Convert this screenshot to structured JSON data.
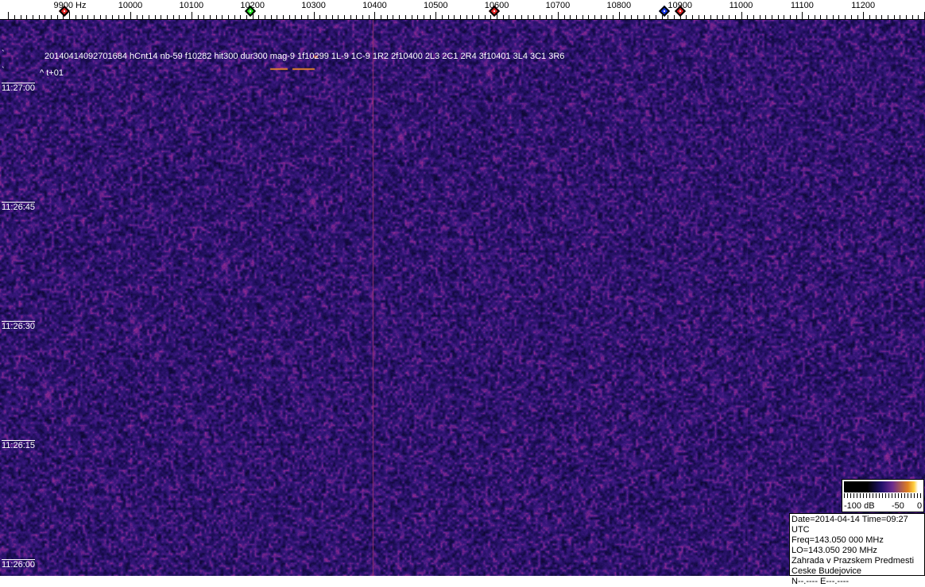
{
  "frequency_scale": {
    "unit_label": "9900 Hz",
    "labels": [
      "10000",
      "10100",
      "10200",
      "10300",
      "10400",
      "10500",
      "10600",
      "10700",
      "10800",
      "10900",
      "11000",
      "11100",
      "11200"
    ],
    "label_values": [
      10000,
      10100,
      10200,
      10300,
      10400,
      10500,
      10600,
      10700,
      10800,
      10900,
      11000,
      11100,
      11200
    ],
    "markers": [
      {
        "name": "red-marker-1",
        "freq": 9892,
        "color": "#e02020"
      },
      {
        "name": "green-marker",
        "freq": 10196,
        "color": "#20e020"
      },
      {
        "name": "red-marker-2",
        "freq": 10596,
        "color": "#e02020"
      },
      {
        "name": "blue-marker",
        "freq": 10875,
        "color": "#1030e0"
      },
      {
        "name": "red-marker-3",
        "freq": 10900,
        "color": "#e02020"
      }
    ]
  },
  "waterfall": {
    "detection_text": "20140414092701684 hCnt14 nb-59 f10282 hit300 dur300 mag-9 1f10299 1L-9 1C-9 1R2 2f10400 2L3 2C1 2R4 3f10401 3L4 3C1 3R6",
    "marker_text": "^ t+01",
    "time_labels": [
      "11:27:00",
      "11:26:45",
      "11:26:30",
      "11:26:15",
      "11:26:00"
    ],
    "background_color": "#2a1870",
    "speckle_color": "#8a2a9a"
  },
  "color_bar": {
    "labels": [
      "-100 dB",
      "-50",
      "0"
    ]
  },
  "info": {
    "lines": [
      "Date=2014-04-14 Time=09:27 UTC",
      "Freq=143.050 000 MHz",
      "LO=143.050 290 MHz",
      "Zahrada v Prazskem Predmesti",
      "Ceske Budejovice",
      "N--.---- E---.----"
    ]
  }
}
